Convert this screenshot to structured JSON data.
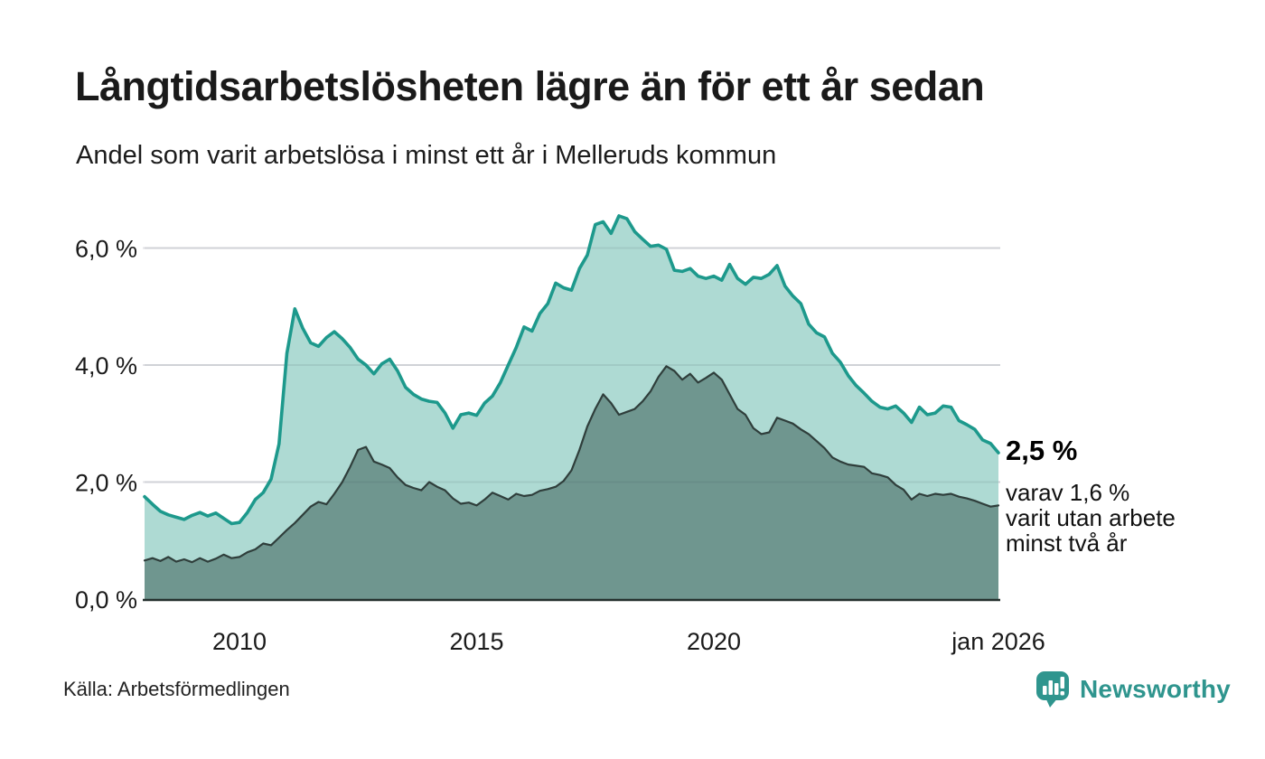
{
  "header": {
    "title": "Långtidsarbetslösheten lägre än för ett år sedan",
    "subtitle": "Andel som varit arbetslösa i minst ett år i Melleruds kommun"
  },
  "annotation": {
    "value": "2,5 %",
    "line1": "varav 1,6 %",
    "line2": "varit utan arbete",
    "line3": "minst två år"
  },
  "footer": {
    "source": "Källa: Arbetsförmedlingen",
    "brand": "Newsworthy"
  },
  "colors": {
    "accent_teal": "#1d998c",
    "area_light": "#aedad3",
    "area_dark": "#6f968f",
    "dark_line": "#2f3e3b",
    "axis_line": "#25302e",
    "gridline": "#e3e3e7",
    "grid_overlay": "rgba(50,65,75,0.10)",
    "text": "#1a1a1a",
    "brand_teal": "#2f958e"
  },
  "chart_data": {
    "type": "area",
    "title": "Långtidsarbetslösheten lägre än för ett år sedan",
    "subtitle": "Andel som varit arbetslösa i minst ett år i Melleruds kommun",
    "unit": "%",
    "grid": true,
    "legend_position": "none",
    "x_range": [
      2008,
      2026
    ],
    "x_step_years": 0.166667,
    "ylim": [
      0,
      6.8
    ],
    "yticks": [
      {
        "value": 0,
        "label": "0,0 %"
      },
      {
        "value": 2,
        "label": "2,0 %"
      },
      {
        "value": 4,
        "label": "4,0 %"
      },
      {
        "value": 6,
        "label": "6,0 %"
      }
    ],
    "xticks": [
      {
        "value": 2010,
        "label": "2010"
      },
      {
        "value": 2015,
        "label": "2015"
      },
      {
        "value": 2020,
        "label": "2020"
      },
      {
        "value": 2026,
        "label": "jan 2026"
      }
    ],
    "latest": {
      "total_min_one_year_pct": 2.5,
      "min_two_years_pct": 1.6,
      "latest_label": "jan 2026"
    },
    "series": [
      {
        "name": "Arbetslösa minst ett år",
        "line_color": "#1d998c",
        "fill_color": "#aedad3",
        "values": [
          1.75,
          1.62,
          1.5,
          1.44,
          1.4,
          1.36,
          1.43,
          1.48,
          1.42,
          1.47,
          1.38,
          1.29,
          1.31,
          1.48,
          1.7,
          1.82,
          2.05,
          2.65,
          4.2,
          4.96,
          4.63,
          4.38,
          4.32,
          4.47,
          4.57,
          4.45,
          4.3,
          4.1,
          4.0,
          3.85,
          4.02,
          4.1,
          3.9,
          3.62,
          3.5,
          3.42,
          3.38,
          3.36,
          3.18,
          2.92,
          3.15,
          3.18,
          3.14,
          3.35,
          3.47,
          3.7,
          4.0,
          4.3,
          4.65,
          4.58,
          4.88,
          5.05,
          5.4,
          5.32,
          5.28,
          5.65,
          5.88,
          6.4,
          6.45,
          6.25,
          6.55,
          6.5,
          6.28,
          6.15,
          6.03,
          6.05,
          5.98,
          5.62,
          5.6,
          5.65,
          5.52,
          5.48,
          5.52,
          5.45,
          5.72,
          5.48,
          5.38,
          5.5,
          5.48,
          5.55,
          5.7,
          5.35,
          5.18,
          5.05,
          4.7,
          4.55,
          4.48,
          4.2,
          4.05,
          3.82,
          3.65,
          3.52,
          3.38,
          3.28,
          3.25,
          3.3,
          3.18,
          3.02,
          3.28,
          3.15,
          3.18,
          3.3,
          3.28,
          3.05,
          2.98,
          2.9,
          2.72,
          2.66,
          2.5
        ]
      },
      {
        "name": "Arbetslösa minst två år",
        "line_color": "#2f3e3b",
        "fill_color": "#6f968f",
        "values": [
          0.66,
          0.7,
          0.65,
          0.72,
          0.64,
          0.68,
          0.63,
          0.7,
          0.64,
          0.69,
          0.76,
          0.7,
          0.72,
          0.8,
          0.85,
          0.95,
          0.92,
          1.05,
          1.18,
          1.3,
          1.44,
          1.58,
          1.66,
          1.62,
          1.8,
          2.0,
          2.26,
          2.55,
          2.6,
          2.35,
          2.3,
          2.24,
          2.08,
          1.95,
          1.9,
          1.86,
          2.0,
          1.92,
          1.86,
          1.72,
          1.63,
          1.65,
          1.6,
          1.7,
          1.82,
          1.76,
          1.7,
          1.8,
          1.76,
          1.78,
          1.85,
          1.88,
          1.92,
          2.02,
          2.2,
          2.55,
          2.95,
          3.25,
          3.5,
          3.35,
          3.15,
          3.2,
          3.25,
          3.38,
          3.55,
          3.8,
          3.98,
          3.9,
          3.75,
          3.85,
          3.7,
          3.78,
          3.87,
          3.75,
          3.5,
          3.25,
          3.15,
          2.92,
          2.82,
          2.85,
          3.1,
          3.05,
          3.0,
          2.9,
          2.82,
          2.7,
          2.58,
          2.42,
          2.35,
          2.3,
          2.28,
          2.26,
          2.15,
          2.12,
          2.08,
          1.95,
          1.87,
          1.7,
          1.8,
          1.76,
          1.8,
          1.78,
          1.8,
          1.75,
          1.72,
          1.68,
          1.63,
          1.58,
          1.6
        ]
      }
    ]
  }
}
